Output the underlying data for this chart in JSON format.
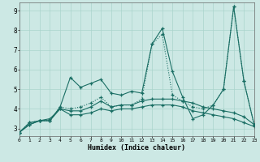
{
  "xlabel": "Humidex (Indice chaleur)",
  "background_color": "#cce8e4",
  "grid_color": "#aad4cc",
  "line_color": "#1a6e64",
  "x_values": [
    0,
    1,
    2,
    3,
    4,
    5,
    6,
    7,
    8,
    9,
    10,
    11,
    12,
    13,
    14,
    15,
    16,
    17,
    18,
    19,
    20,
    21,
    22,
    23
  ],
  "series1": [
    2.8,
    3.3,
    3.4,
    3.4,
    4.1,
    5.6,
    5.1,
    5.3,
    5.5,
    4.8,
    4.7,
    4.9,
    4.8,
    7.3,
    8.1,
    5.9,
    4.6,
    3.5,
    3.7,
    4.2,
    5.0,
    9.2,
    5.4,
    3.2
  ],
  "series2": [
    2.8,
    3.3,
    3.4,
    3.4,
    4.1,
    4.0,
    4.1,
    4.3,
    4.6,
    4.1,
    4.2,
    4.2,
    4.5,
    7.3,
    7.8,
    4.7,
    4.4,
    4.1,
    4.0,
    4.2,
    5.0,
    9.2,
    5.4,
    3.2
  ],
  "series3": [
    2.8,
    3.2,
    3.4,
    3.5,
    4.0,
    3.9,
    3.9,
    4.1,
    4.4,
    4.1,
    4.2,
    4.2,
    4.4,
    4.5,
    4.5,
    4.5,
    4.4,
    4.3,
    4.1,
    4.0,
    3.9,
    3.8,
    3.6,
    3.2
  ],
  "series4": [
    2.8,
    3.2,
    3.4,
    3.4,
    4.0,
    3.7,
    3.7,
    3.8,
    4.0,
    3.9,
    4.0,
    4.0,
    4.1,
    4.2,
    4.2,
    4.2,
    4.1,
    3.9,
    3.8,
    3.7,
    3.6,
    3.5,
    3.3,
    3.1
  ],
  "xlim": [
    0,
    23
  ],
  "ylim": [
    2.6,
    9.4
  ],
  "yticks": [
    3,
    4,
    5,
    6,
    7,
    8,
    9
  ],
  "xticks": [
    0,
    1,
    2,
    3,
    4,
    5,
    6,
    7,
    8,
    9,
    10,
    11,
    12,
    13,
    14,
    15,
    16,
    17,
    18,
    19,
    20,
    21,
    22,
    23
  ]
}
